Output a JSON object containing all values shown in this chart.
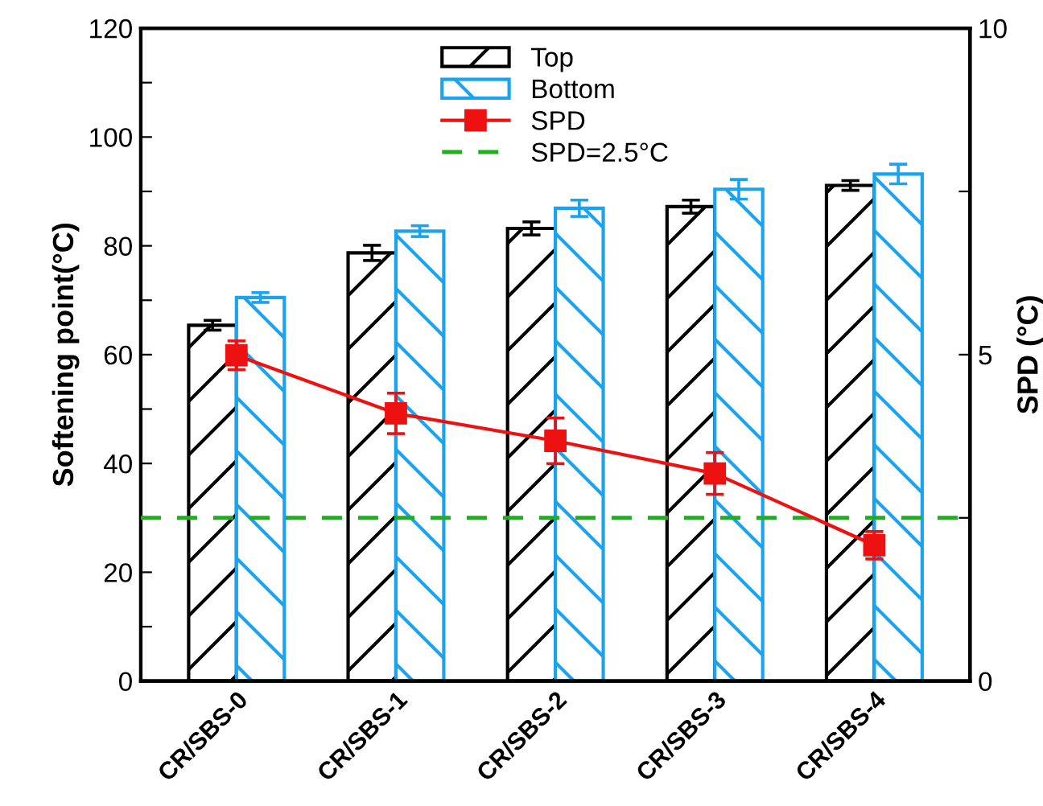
{
  "chart_data": {
    "type": "bar",
    "ylabel": "Softening point(°C)",
    "y2label": "SPD (°C)",
    "categories": [
      "CR/SBS-0",
      "CR/SBS-1",
      "CR/SBS-2",
      "CR/SBS-3",
      "CR/SBS-4"
    ],
    "series": [
      {
        "name": "Top",
        "color": "#000000",
        "values": [
          65.4,
          78.7,
          83.2,
          87.2,
          91.1
        ],
        "errors": [
          0.9,
          1.4,
          1.2,
          1.2,
          0.9
        ]
      },
      {
        "name": "Bottom",
        "color": "#1aa3ee",
        "values": [
          70.5,
          82.7,
          86.9,
          90.4,
          93.2
        ],
        "errors": [
          0.9,
          1.0,
          1.5,
          1.8,
          1.8
        ]
      },
      {
        "name": "SPD",
        "type": "line",
        "axis": "y2",
        "color": "#ee1111",
        "marker": "square",
        "line_style": "solid",
        "values": [
          4.99,
          4.1,
          3.68,
          3.18,
          2.08
        ],
        "errors": [
          0.22,
          0.31,
          0.35,
          0.32,
          0.21
        ]
      }
    ],
    "ref_lines": [
      {
        "axis": "y2",
        "value": 2.5,
        "label": "SPD=2.5°C",
        "color": "#1cb01c",
        "line_style": "dashed"
      }
    ],
    "ylim": [
      0,
      120
    ],
    "yticks": [
      0,
      {
        "value": 10,
        "label": null
      },
      20,
      {
        "value": 30,
        "label": null
      },
      40,
      {
        "value": 50,
        "label": null
      },
      60,
      {
        "value": 70,
        "label": null
      },
      80,
      {
        "value": 90,
        "label": null
      },
      100,
      {
        "value": 110,
        "label": null
      },
      120
    ],
    "y2lim": [
      0,
      10
    ],
    "y2ticks": [
      0,
      {
        "value": 2.5,
        "label": null
      },
      5,
      {
        "value": 7.5,
        "label": null
      },
      10
    ],
    "legend": "top",
    "grid": false
  }
}
